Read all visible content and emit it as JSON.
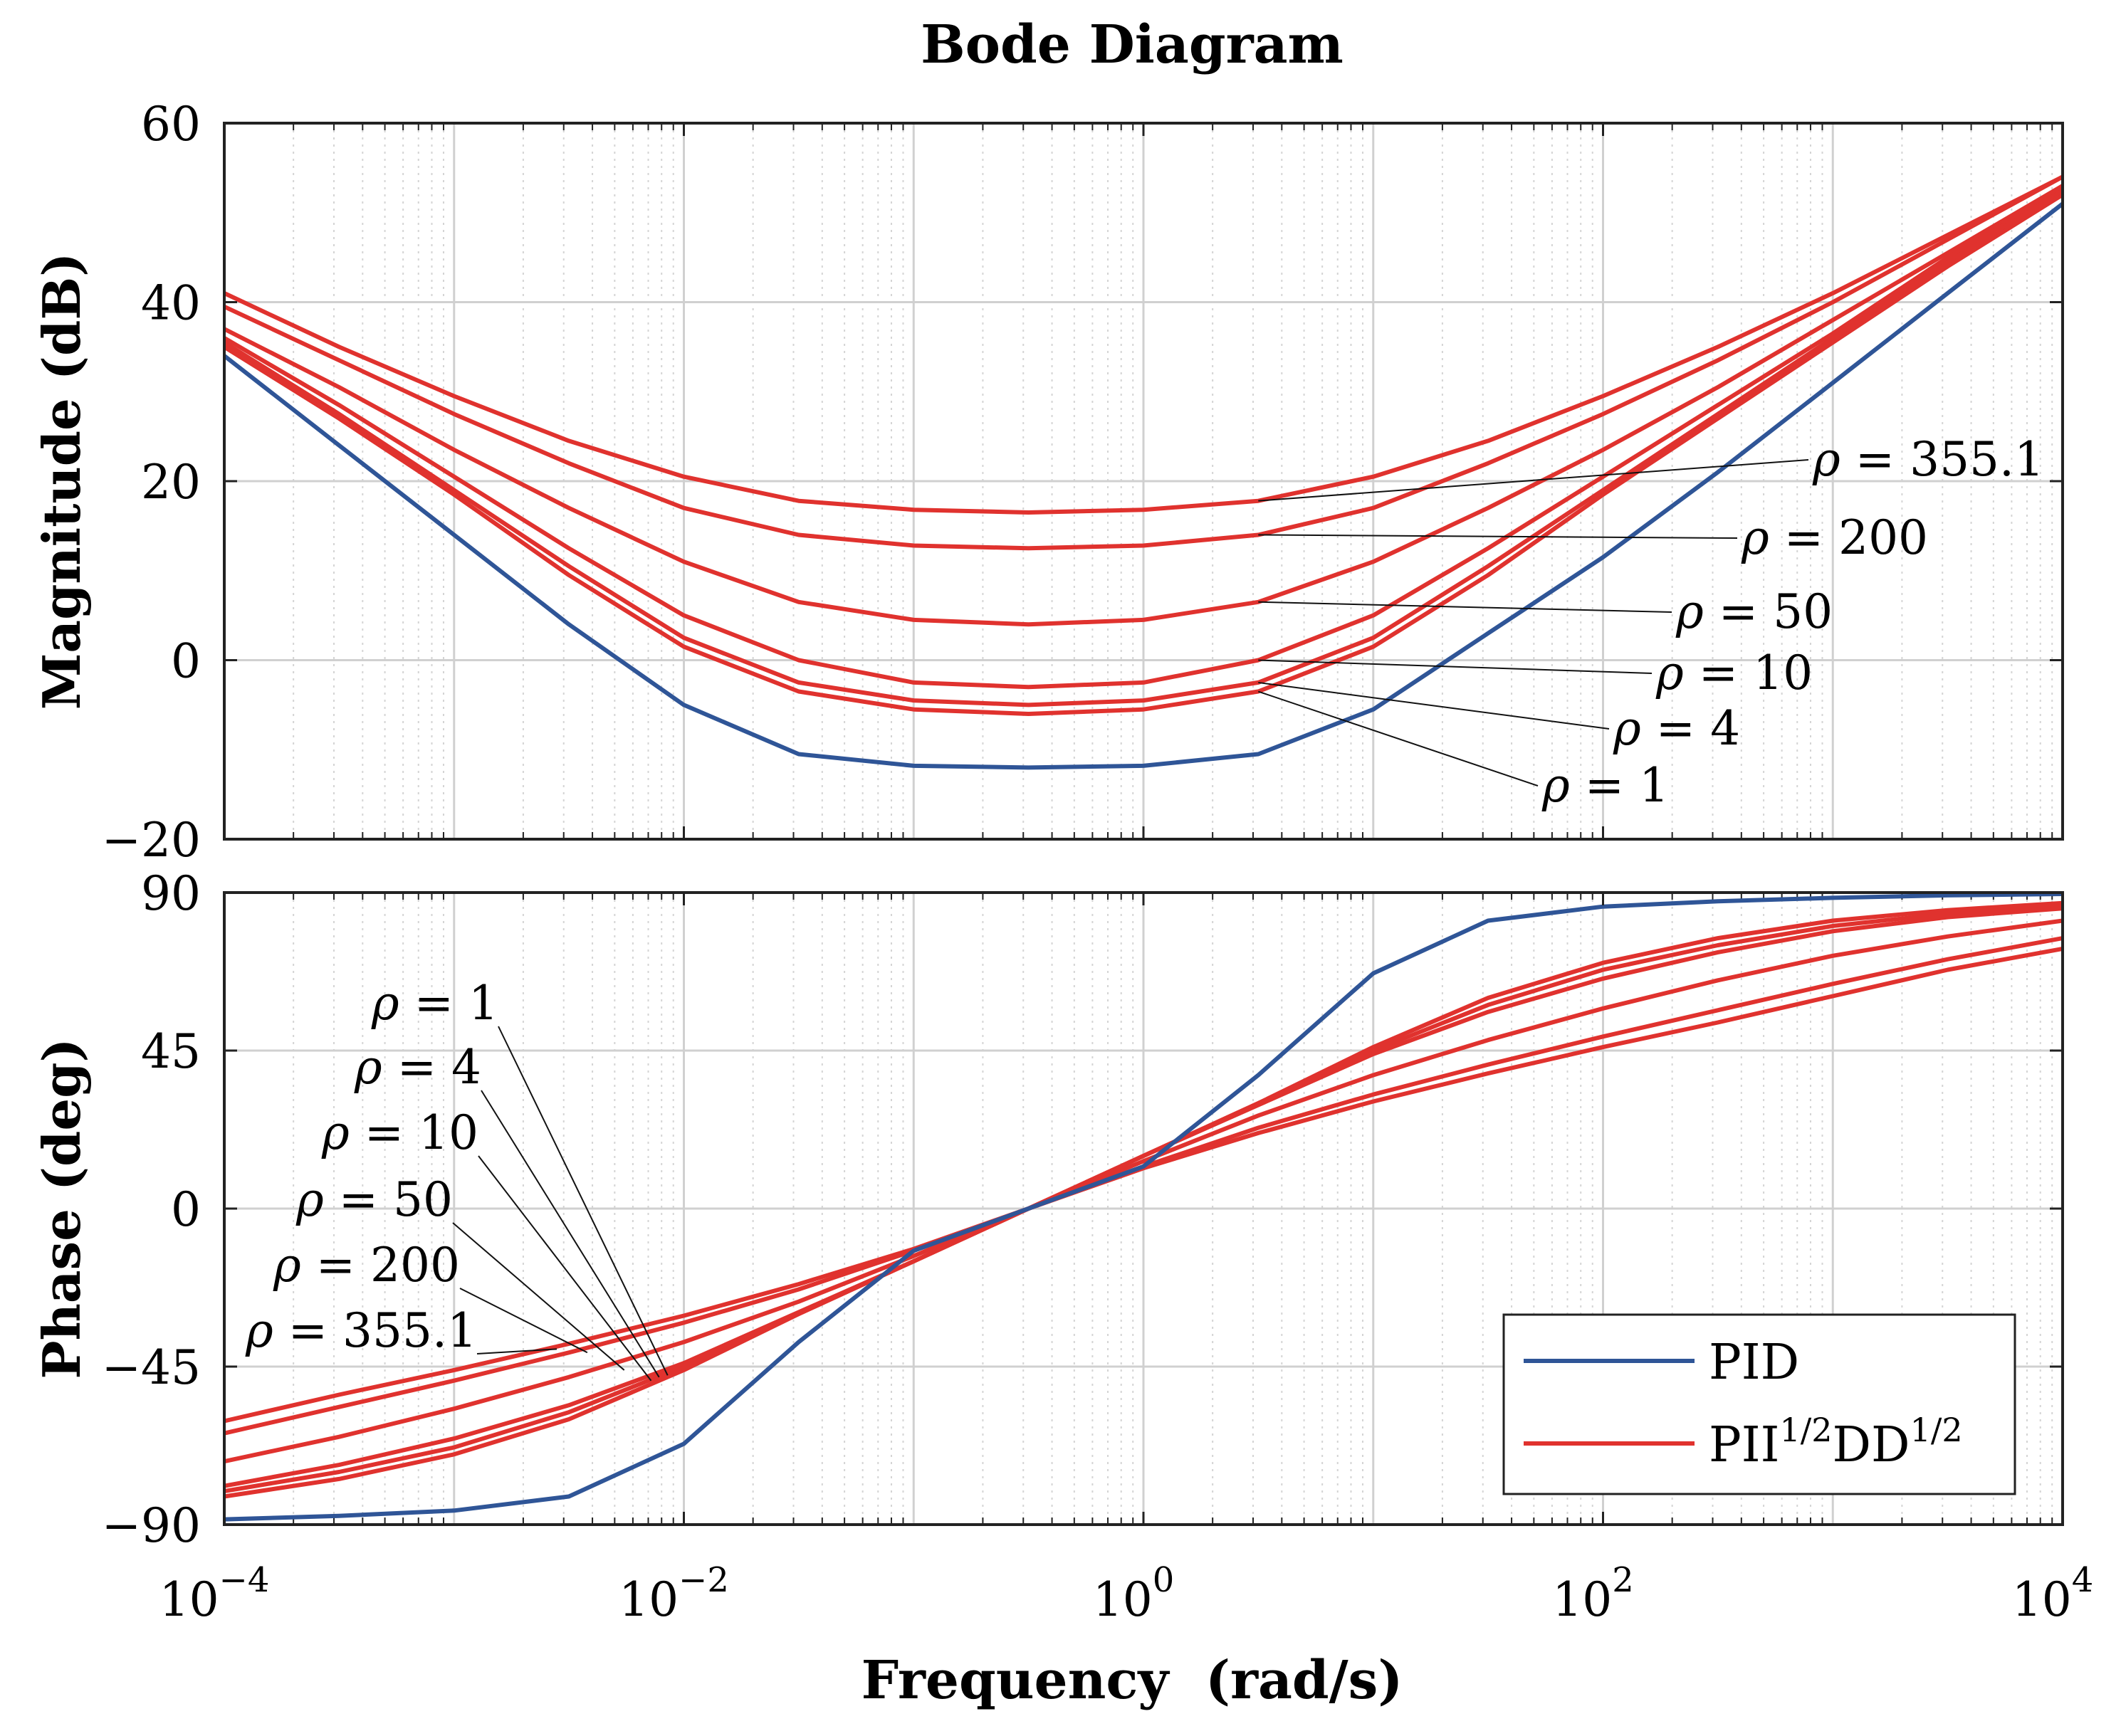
{
  "title": "Bode Diagram",
  "chart_data": [
    {
      "type": "line",
      "panel": "magnitude",
      "ylabel": "Magnitude (dB)",
      "xscale": "log",
      "xlim": [
        0.0001,
        10000
      ],
      "ylim": [
        -20,
        60
      ],
      "yticks": [
        -20,
        0,
        20,
        40,
        60
      ],
      "ytick_labels": [
        "−20",
        "0",
        "20",
        "40",
        "60"
      ],
      "grid": true,
      "x": [
        0.0001,
        0.000316,
        0.001,
        0.00316,
        0.01,
        0.0316,
        0.1,
        0.316,
        1,
        3.16,
        10,
        31.6,
        100,
        316,
        1000,
        3162,
        10000
      ],
      "series": [
        {
          "name": "PID",
          "color": "#2f5597",
          "values": [
            34.0,
            24.0,
            14.0,
            4.0,
            -5.0,
            -10.5,
            -11.8,
            -12.0,
            -11.8,
            -10.5,
            -5.5,
            3.0,
            11.5,
            21.0,
            31.0,
            41.0,
            51.0
          ]
        },
        {
          "name": "ρ = 1",
          "color": "#e0322e",
          "values": [
            35.0,
            27.0,
            18.5,
            9.5,
            1.5,
            -3.5,
            -5.5,
            -6.0,
            -5.5,
            -3.5,
            1.5,
            9.5,
            18.5,
            27.0,
            35.5,
            44.0,
            52.0
          ]
        },
        {
          "name": "ρ = 4",
          "color": "#e0322e",
          "values": [
            35.5,
            27.5,
            19.0,
            10.5,
            2.5,
            -2.5,
            -4.5,
            -5.0,
            -4.5,
            -2.5,
            2.5,
            10.5,
            19.0,
            27.5,
            36.0,
            44.5,
            52.5
          ]
        },
        {
          "name": "ρ = 10",
          "color": "#e0322e",
          "values": [
            36.0,
            28.5,
            20.5,
            12.5,
            5.0,
            0.0,
            -2.5,
            -3.0,
            -2.5,
            0.0,
            5.0,
            12.5,
            20.5,
            28.5,
            36.5,
            45.0,
            53.0
          ]
        },
        {
          "name": "ρ = 50",
          "color": "#e0322e",
          "values": [
            37.0,
            30.5,
            23.5,
            17.0,
            11.0,
            6.5,
            4.5,
            4.0,
            4.5,
            6.5,
            11.0,
            17.0,
            23.5,
            30.5,
            38.0,
            45.5,
            53.0
          ]
        },
        {
          "name": "ρ = 200",
          "color": "#e0322e",
          "values": [
            39.5,
            33.5,
            27.5,
            22.0,
            17.0,
            14.0,
            12.8,
            12.5,
            12.8,
            14.0,
            17.0,
            22.0,
            27.5,
            33.5,
            40.0,
            47.0,
            54.0
          ]
        },
        {
          "name": "ρ = 355.1",
          "color": "#e0322e",
          "values": [
            41.0,
            35.0,
            29.5,
            24.5,
            20.5,
            17.8,
            16.8,
            16.5,
            16.8,
            17.8,
            20.5,
            24.5,
            29.5,
            35.0,
            41.0,
            47.5,
            54.0
          ]
        }
      ],
      "annotations": [
        "ρ = 355.1",
        "ρ = 200",
        "ρ = 50",
        "ρ = 10",
        "ρ = 4",
        "ρ = 1"
      ]
    },
    {
      "type": "line",
      "panel": "phase",
      "ylabel": "Phase (deg)",
      "xlabel": "Frequency  (rad/s)",
      "xscale": "log",
      "xlim": [
        0.0001,
        10000
      ],
      "ylim": [
        -90,
        90
      ],
      "yticks": [
        -90,
        -45,
        0,
        45,
        90
      ],
      "ytick_labels": [
        "−90",
        "−45",
        "0",
        "45",
        "90"
      ],
      "xticks": [
        0.0001,
        0.01,
        1,
        100,
        10000
      ],
      "xtick_base": "10",
      "xtick_exponents": [
        "−4",
        "−2",
        "0",
        "2",
        "4"
      ],
      "grid": true,
      "x": [
        0.0001,
        0.000316,
        0.001,
        0.00316,
        0.01,
        0.0316,
        0.1,
        0.316,
        1,
        3.16,
        10,
        31.6,
        100,
        316,
        1000,
        3162,
        10000
      ],
      "series": [
        {
          "name": "PID",
          "color": "#2f5597",
          "values": [
            -88.5,
            -87.5,
            -86.0,
            -82.0,
            -67.0,
            -38.0,
            -12.0,
            0.0,
            12.0,
            38.0,
            67.0,
            82.0,
            86.0,
            87.5,
            88.5,
            89.2,
            89.6
          ]
        },
        {
          "name": "ρ = 1",
          "color": "#e0322e",
          "values": [
            -82.0,
            -77.0,
            -70.0,
            -60.0,
            -46.0,
            -30.0,
            -15.0,
            0.0,
            15.0,
            30.0,
            46.0,
            60.0,
            70.0,
            77.0,
            82.0,
            85.0,
            87.0
          ]
        },
        {
          "name": "ρ = 4",
          "color": "#e0322e",
          "values": [
            -80.5,
            -75.0,
            -68.0,
            -58.0,
            -45.0,
            -30.0,
            -15.0,
            0.0,
            15.0,
            30.0,
            45.0,
            58.0,
            68.0,
            75.0,
            80.5,
            84.0,
            86.5
          ]
        },
        {
          "name": "ρ = 10",
          "color": "#e0322e",
          "values": [
            -79.0,
            -73.0,
            -65.5,
            -56.0,
            -44.0,
            -29.5,
            -15.0,
            0.0,
            15.0,
            29.5,
            44.0,
            56.0,
            65.5,
            73.0,
            79.0,
            83.0,
            85.5
          ]
        },
        {
          "name": "ρ = 50",
          "color": "#e0322e",
          "values": [
            -72.0,
            -65.0,
            -57.0,
            -48.0,
            -38.0,
            -26.5,
            -13.5,
            0.0,
            13.5,
            26.5,
            38.0,
            48.0,
            57.0,
            65.0,
            72.0,
            77.5,
            82.0
          ]
        },
        {
          "name": "ρ = 200",
          "color": "#e0322e",
          "values": [
            -64.0,
            -56.5,
            -49.0,
            -41.0,
            -32.5,
            -23.0,
            -12.0,
            0.0,
            12.0,
            23.0,
            32.5,
            41.0,
            49.0,
            56.5,
            64.0,
            71.0,
            77.0
          ]
        },
        {
          "name": "ρ = 355.1",
          "color": "#e0322e",
          "values": [
            -60.5,
            -53.0,
            -46.0,
            -38.5,
            -30.5,
            -21.5,
            -11.5,
            0.0,
            11.5,
            21.5,
            30.5,
            38.5,
            46.0,
            53.0,
            60.5,
            68.0,
            74.0
          ]
        }
      ],
      "annotations": [
        "ρ = 1",
        "ρ = 4",
        "ρ = 10",
        "ρ = 50",
        "ρ = 200",
        "ρ = 355.1"
      ],
      "legend": {
        "position": "bottom-right",
        "entries": [
          {
            "label": "PID",
            "color": "#2f5597"
          },
          {
            "label": "PII",
            "sup1": "1/2",
            "label2": "DD",
            "sup2": "1/2",
            "color": "#e0322e"
          }
        ]
      }
    }
  ]
}
